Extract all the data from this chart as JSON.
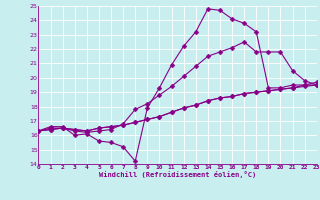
{
  "xlabel": "Windchill (Refroidissement éolien,°C)",
  "bg_color": "#c8eef0",
  "line_color": "#880088",
  "markersize": 2.5,
  "linewidth": 0.8,
  "xmin": 0,
  "xmax": 23,
  "ymin": 14,
  "ymax": 25,
  "xticks": [
    0,
    1,
    2,
    3,
    4,
    5,
    6,
    7,
    8,
    9,
    10,
    11,
    12,
    13,
    14,
    15,
    16,
    17,
    18,
    19,
    20,
    21,
    22,
    23
  ],
  "yticks": [
    14,
    15,
    16,
    17,
    18,
    19,
    20,
    21,
    22,
    23,
    24,
    25
  ],
  "series": [
    {
      "x": [
        0,
        1,
        2,
        3,
        4,
        5,
        6,
        7,
        8,
        9,
        10,
        11,
        12,
        13,
        14,
        15,
        16,
        17,
        18,
        19,
        20,
        21,
        22,
        23
      ],
      "y": [
        16.3,
        16.6,
        16.6,
        16.0,
        16.1,
        15.6,
        15.5,
        15.2,
        14.2,
        17.9,
        19.3,
        20.9,
        22.2,
        23.2,
        24.8,
        24.7,
        24.1,
        23.8,
        23.2,
        19.3,
        19.3,
        19.5,
        19.5,
        19.5
      ]
    },
    {
      "x": [
        0,
        1,
        2,
        3,
        4,
        5,
        6,
        7,
        8,
        9,
        10,
        11,
        12,
        13,
        14,
        15,
        16,
        17,
        18,
        19,
        20,
        21,
        22,
        23
      ],
      "y": [
        16.3,
        16.5,
        16.5,
        16.3,
        16.2,
        16.3,
        16.4,
        16.8,
        17.8,
        18.2,
        18.8,
        19.4,
        20.1,
        20.8,
        21.5,
        21.8,
        22.1,
        22.5,
        21.8,
        21.8,
        21.8,
        20.5,
        19.8,
        19.5
      ]
    },
    {
      "x": [
        0,
        1,
        2,
        3,
        4,
        5,
        6,
        7,
        8,
        9,
        10,
        11,
        12,
        13,
        14,
        15,
        16,
        17,
        18,
        19,
        20,
        21,
        22,
        23
      ],
      "y": [
        16.3,
        16.4,
        16.5,
        16.4,
        16.3,
        16.5,
        16.6,
        16.7,
        16.9,
        17.1,
        17.3,
        17.6,
        17.9,
        18.1,
        18.4,
        18.6,
        18.7,
        18.9,
        19.0,
        19.1,
        19.2,
        19.3,
        19.4,
        19.5
      ]
    },
    {
      "x": [
        0,
        1,
        2,
        3,
        4,
        5,
        6,
        7,
        8,
        9,
        10,
        11,
        12,
        13,
        14,
        15,
        16,
        17,
        18,
        19,
        20,
        21,
        22,
        23
      ],
      "y": [
        16.3,
        16.4,
        16.5,
        16.4,
        16.3,
        16.5,
        16.6,
        16.7,
        16.9,
        17.1,
        17.3,
        17.6,
        17.9,
        18.1,
        18.4,
        18.6,
        18.7,
        18.9,
        19.0,
        19.1,
        19.2,
        19.3,
        19.5,
        19.7
      ]
    }
  ]
}
